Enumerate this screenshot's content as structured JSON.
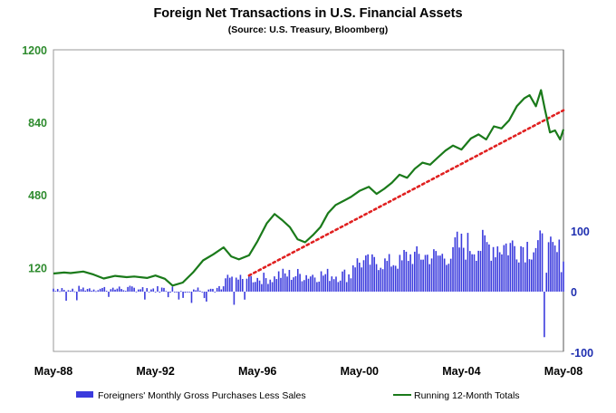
{
  "chart_data": {
    "type": "bar+line",
    "title": "Foreign Net Transactions in U.S. Financial Assets",
    "subtitle": "(Source: U.S. Treasury, Bloomberg)",
    "x_ticks": [
      "May-88",
      "May-92",
      "May-96",
      "May-00",
      "May-04",
      "May-08"
    ],
    "left_axis": {
      "ticks": [
        "1200",
        "840",
        "480",
        "120"
      ],
      "tick_values": [
        1200,
        840,
        480,
        120
      ],
      "color": "#2e8b2e"
    },
    "right_axis": {
      "ticks": [
        "100",
        "0",
        "-100"
      ],
      "tick_values": [
        100,
        0,
        -100
      ],
      "color": "#1f2fb0"
    },
    "series": [
      {
        "name": "Running 12-Month Totals",
        "type": "line",
        "axis": "left",
        "color": "#1a7a1a",
        "x": [
          1988.33,
          1988.75,
          1989.0,
          1989.5,
          1989.9,
          1990.3,
          1990.75,
          1991.2,
          1991.5,
          1992.0,
          1992.33,
          1992.7,
          1993.0,
          1993.4,
          1993.8,
          1994.2,
          1994.6,
          1995.0,
          1995.3,
          1995.6,
          1996.0,
          1996.33,
          1996.7,
          1997.0,
          1997.3,
          1997.6,
          1997.9,
          1998.2,
          1998.5,
          1998.8,
          1999.1,
          1999.4,
          1999.7,
          2000.0,
          2000.33,
          2000.7,
          2001.0,
          2001.3,
          2001.6,
          2001.9,
          2002.2,
          2002.5,
          2002.8,
          2003.1,
          2003.4,
          2003.7,
          2004.0,
          2004.33,
          2004.7,
          2005.0,
          2005.3,
          2005.6,
          2005.9,
          2006.2,
          2006.5,
          2006.8,
          2007.0,
          2007.25,
          2007.45,
          2007.6,
          2007.8,
          2008.0,
          2008.2,
          2008.33
        ],
        "y": [
          90,
          95,
          92,
          100,
          85,
          65,
          78,
          72,
          75,
          68,
          80,
          64,
          30,
          45,
          95,
          155,
          185,
          220,
          175,
          160,
          180,
          250,
          340,
          385,
          355,
          320,
          260,
          245,
          280,
          320,
          390,
          430,
          450,
          470,
          500,
          520,
          485,
          510,
          540,
          580,
          565,
          610,
          640,
          630,
          665,
          700,
          725,
          705,
          760,
          780,
          755,
          820,
          810,
          850,
          920,
          960,
          975,
          920,
          1000,
          905,
          790,
          800,
          755,
          805
        ]
      },
      {
        "name": "Trend",
        "type": "dotted-line",
        "axis": "left",
        "color": "#e02020",
        "x": [
          1996.0,
          2008.33
        ],
        "y": [
          80,
          900
        ]
      },
      {
        "name": "Foreigners' Monthly Gross Purchases Less Sales",
        "type": "bar",
        "axis": "right",
        "color": "#3b3bdd",
        "x_range": [
          1988.33,
          2008.33
        ],
        "note": "monthly values, roughly -10..15 in 1988-1995 rising to 60..130 in 2004-2007 with one drop near -75 in Aug-2007"
      }
    ],
    "legend": [
      "Foreigners' Monthly Gross Purchases Less Sales",
      "Running 12-Month Totals"
    ],
    "legend_position": "bottom"
  }
}
